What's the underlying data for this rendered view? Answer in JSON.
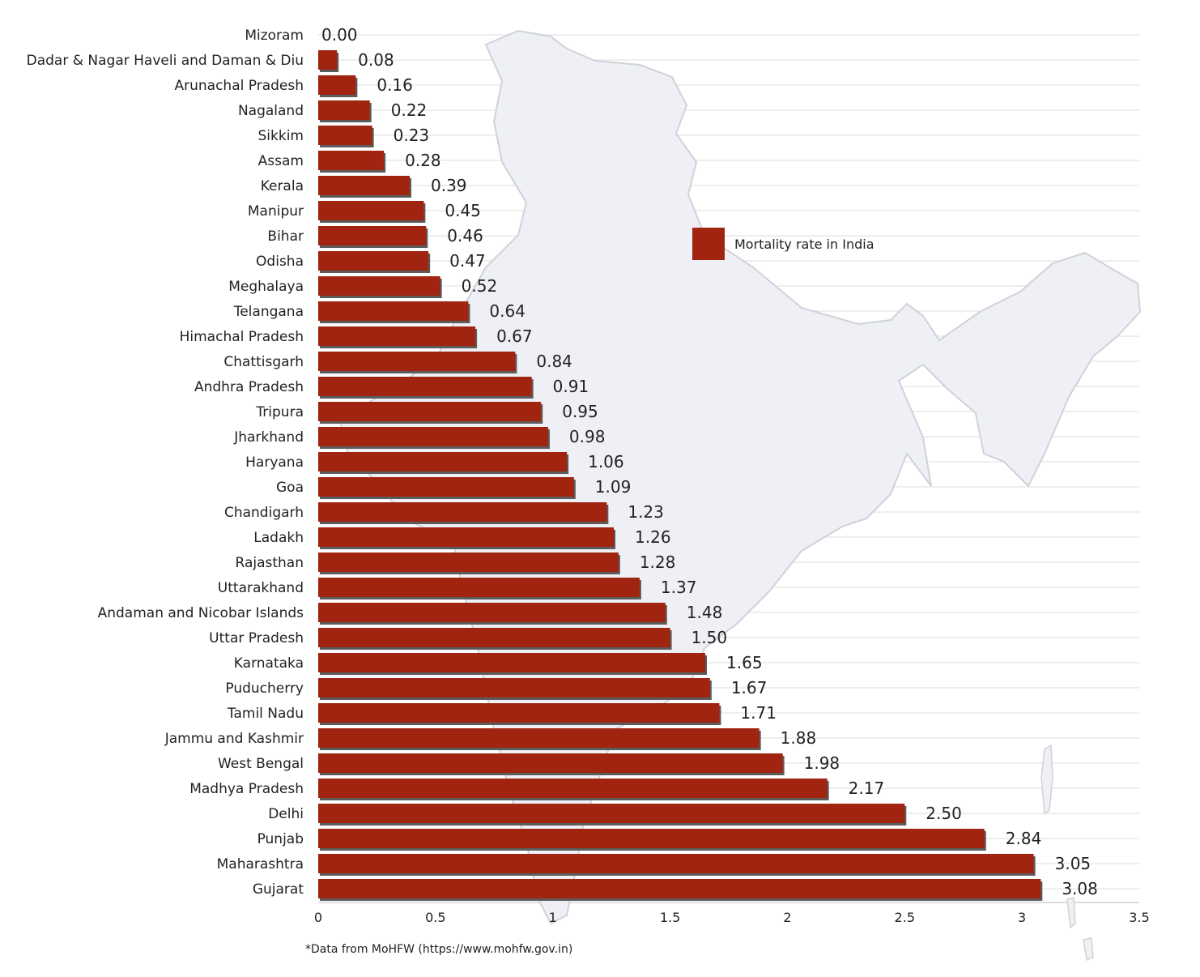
{
  "chart_data": {
    "type": "bar",
    "orientation": "horizontal",
    "categories": [
      "Mizoram",
      "Dadar & Nagar Haveli and Daman & Diu",
      "Arunachal Pradesh",
      "Nagaland",
      "Sikkim",
      "Assam",
      "Kerala",
      "Manipur",
      "Bihar",
      "Odisha",
      "Meghalaya",
      "Telangana",
      "Himachal Pradesh",
      "Chattisgarh",
      "Andhra Pradesh",
      "Tripura",
      "Jharkhand",
      "Haryana",
      "Goa",
      "Chandigarh",
      "Ladakh",
      "Rajasthan",
      "Uttarakhand",
      "Andaman and Nicobar Islands",
      "Uttar Pradesh",
      "Karnataka",
      "Puducherry",
      "Tamil Nadu",
      "Jammu and Kashmir",
      "West Bengal",
      "Madhya Pradesh",
      "Delhi",
      "Punjab",
      "Maharashtra",
      "Gujarat"
    ],
    "values": [
      0.0,
      0.08,
      0.16,
      0.22,
      0.23,
      0.28,
      0.39,
      0.45,
      0.46,
      0.47,
      0.52,
      0.64,
      0.67,
      0.84,
      0.91,
      0.95,
      0.98,
      1.06,
      1.09,
      1.23,
      1.26,
      1.28,
      1.37,
      1.48,
      1.5,
      1.65,
      1.67,
      1.71,
      1.88,
      1.98,
      2.17,
      2.5,
      2.84,
      3.05,
      3.08
    ],
    "value_labels": [
      "0.00",
      "0.08",
      "0.16",
      "0.22",
      "0.23",
      "0.28",
      "0.39",
      "0.45",
      "0.46",
      "0.47",
      "0.52",
      "0.64",
      "0.67",
      "0.84",
      "0.91",
      "0.95",
      "0.98",
      "1.06",
      "1.09",
      "1.23",
      "1.26",
      "1.28",
      "1.37",
      "1.48",
      "1.50",
      "1.65",
      "1.67",
      "1.71",
      "1.88",
      "1.98",
      "2.17",
      "2.50",
      "2.84",
      "3.05",
      "3.08"
    ],
    "series": [
      {
        "name": "Mortality rate in India",
        "color": "#a0240f"
      }
    ],
    "x_ticks": [
      "0",
      "0.5",
      "1",
      "1.5",
      "2",
      "2.5",
      "3",
      "3.5"
    ],
    "xlim": [
      0,
      3.5
    ],
    "title": "",
    "xlabel": "",
    "ylabel": "",
    "grid": true,
    "legend_position": "center-right",
    "background_image": "india-map-outline",
    "source_note": "*Data from MoHFW (https://www.mohfw.gov.in)"
  },
  "colors": {
    "bar": "#a0240f",
    "bar_shadow": "#5c5c5c",
    "grid": "#dcdcdc",
    "map_fill": "#eef0f5",
    "map_stroke": "#cfd2d8"
  }
}
